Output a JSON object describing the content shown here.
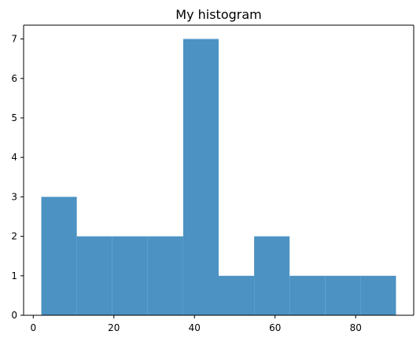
{
  "chart_data": {
    "type": "bar",
    "title": "My histogram",
    "xlabel": "",
    "ylabel": "",
    "grid": false,
    "color": "#4c92c3",
    "bins": [
      {
        "x0": 2.0,
        "x1": 10.8,
        "count": 3
      },
      {
        "x0": 10.8,
        "x1": 19.6,
        "count": 2
      },
      {
        "x0": 19.6,
        "x1": 28.4,
        "count": 2
      },
      {
        "x0": 28.4,
        "x1": 37.2,
        "count": 2
      },
      {
        "x0": 37.2,
        "x1": 46.0,
        "count": 7
      },
      {
        "x0": 46.0,
        "x1": 54.8,
        "count": 1
      },
      {
        "x0": 54.8,
        "x1": 63.6,
        "count": 2
      },
      {
        "x0": 63.6,
        "x1": 72.4,
        "count": 1
      },
      {
        "x0": 72.4,
        "x1": 81.2,
        "count": 1
      },
      {
        "x0": 81.2,
        "x1": 90.0,
        "count": 1
      }
    ],
    "xlim": [
      -2.4,
      94.4
    ],
    "ylim": [
      0,
      7.35
    ],
    "xticks": [
      0,
      20,
      40,
      60,
      80
    ],
    "xtick_labels": [
      "0",
      "20",
      "40",
      "60",
      "80"
    ],
    "yticks": [
      0,
      1,
      2,
      3,
      4,
      5,
      6,
      7
    ],
    "ytick_labels": [
      "0",
      "1",
      "2",
      "3",
      "4",
      "5",
      "6",
      "7"
    ]
  }
}
